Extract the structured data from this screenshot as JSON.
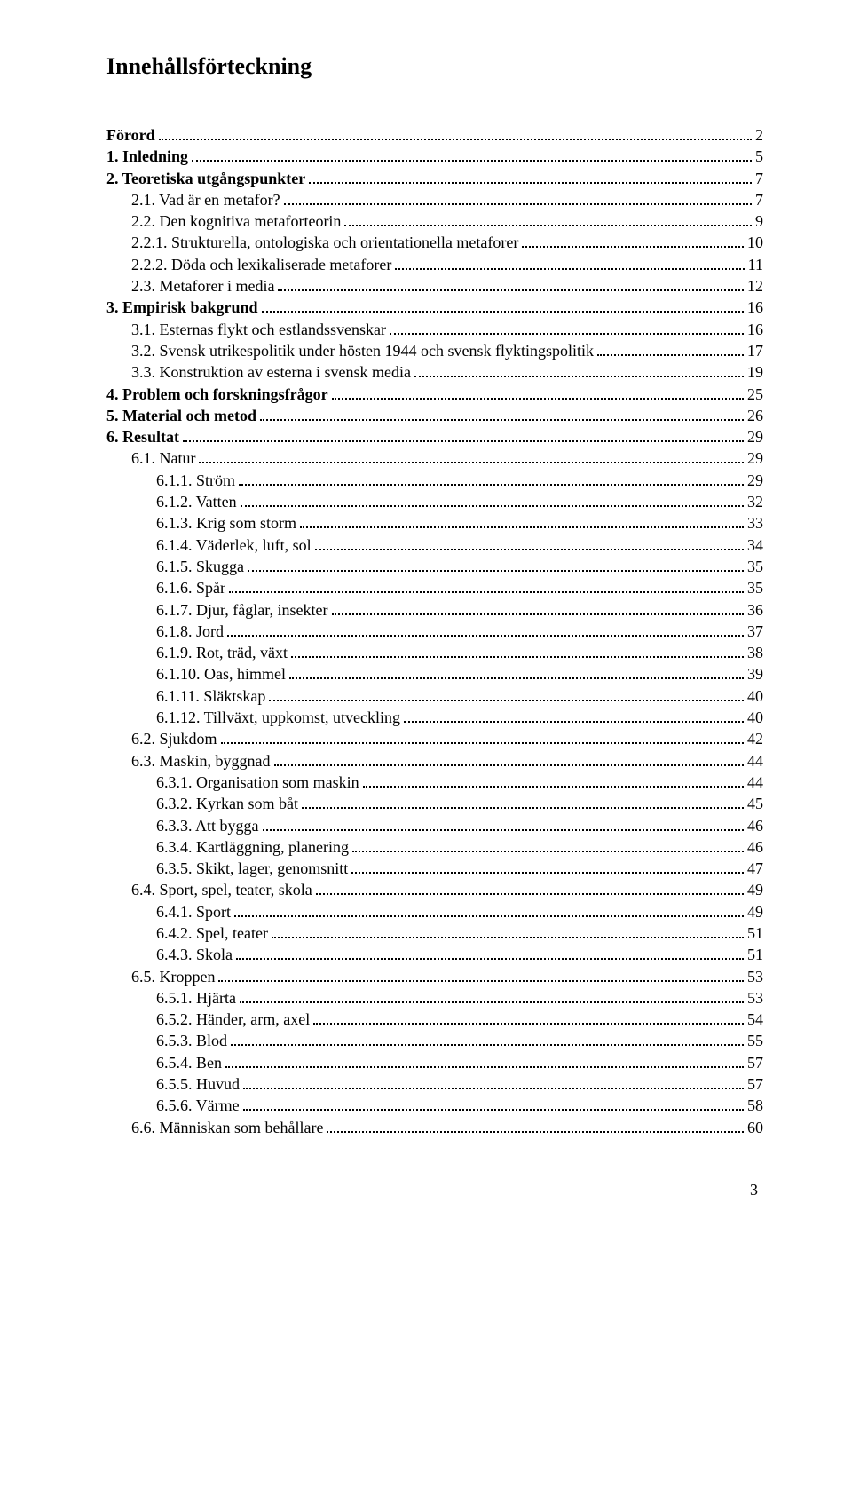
{
  "title": "Innehållsförteckning",
  "page_number": "3",
  "colors": {
    "text": "#000000",
    "background": "#ffffff",
    "dots": "#000000"
  },
  "typography": {
    "font_family": "Times New Roman",
    "title_fontsize_pt": 20,
    "body_fontsize_pt": 13
  },
  "toc": [
    {
      "label": "Förord",
      "page": "2",
      "bold": true,
      "indent": 0
    },
    {
      "label": "1. Inledning",
      "page": "5",
      "bold": true,
      "indent": 0
    },
    {
      "label": "2. Teoretiska utgångspunkter",
      "page": "7",
      "bold": true,
      "indent": 0
    },
    {
      "label": "2.1. Vad är en metafor?",
      "page": "7",
      "bold": false,
      "indent": 1
    },
    {
      "label": "2.2. Den kognitiva metaforteorin",
      "page": "9",
      "bold": false,
      "indent": 1
    },
    {
      "label": "2.2.1. Strukturella, ontologiska och orientationella metaforer",
      "page": "10",
      "bold": false,
      "indent": 1
    },
    {
      "label": "2.2.2. Döda och lexikaliserade metaforer",
      "page": "11",
      "bold": false,
      "indent": 1
    },
    {
      "label": "2.3. Metaforer i media",
      "page": "12",
      "bold": false,
      "indent": 1
    },
    {
      "label": "3. Empirisk bakgrund",
      "page": "16",
      "bold": true,
      "indent": 0
    },
    {
      "label": "3.1. Esternas flykt och estlandssvenskar",
      "page": "16",
      "bold": false,
      "indent": 1
    },
    {
      "label": "3.2. Svensk utrikespolitik under hösten 1944 och svensk flyktingspolitik",
      "page": "17",
      "bold": false,
      "indent": 1
    },
    {
      "label": "3.3. Konstruktion av esterna i svensk media",
      "page": "19",
      "bold": false,
      "indent": 1
    },
    {
      "label": "4. Problem och forskningsfrågor",
      "page": "25",
      "bold": true,
      "indent": 0
    },
    {
      "label": "5. Material och metod",
      "page": "26",
      "bold": true,
      "indent": 0
    },
    {
      "label": "6. Resultat",
      "page": "29",
      "bold": true,
      "indent": 0
    },
    {
      "label": "6.1. Natur",
      "page": "29",
      "bold": false,
      "indent": 1
    },
    {
      "label": "6.1.1. Ström",
      "page": "29",
      "bold": false,
      "indent": 2
    },
    {
      "label": "6.1.2. Vatten",
      "page": "32",
      "bold": false,
      "indent": 2
    },
    {
      "label": "6.1.3. Krig som storm",
      "page": "33",
      "bold": false,
      "indent": 2
    },
    {
      "label": "6.1.4. Väderlek, luft, sol",
      "page": "34",
      "bold": false,
      "indent": 2
    },
    {
      "label": "6.1.5. Skugga",
      "page": "35",
      "bold": false,
      "indent": 2
    },
    {
      "label": "6.1.6. Spår",
      "page": "35",
      "bold": false,
      "indent": 2
    },
    {
      "label": "6.1.7. Djur, fåglar, insekter",
      "page": "36",
      "bold": false,
      "indent": 2
    },
    {
      "label": "6.1.8. Jord",
      "page": "37",
      "bold": false,
      "indent": 2
    },
    {
      "label": "6.1.9. Rot, träd, växt",
      "page": "38",
      "bold": false,
      "indent": 2
    },
    {
      "label": "6.1.10. Oas, himmel",
      "page": "39",
      "bold": false,
      "indent": 2
    },
    {
      "label": "6.1.11. Släktskap",
      "page": "40",
      "bold": false,
      "indent": 2
    },
    {
      "label": "6.1.12. Tillväxt, uppkomst, utveckling",
      "page": "40",
      "bold": false,
      "indent": 2
    },
    {
      "label": "6.2. Sjukdom",
      "page": "42",
      "bold": false,
      "indent": 1
    },
    {
      "label": "6.3. Maskin, byggnad",
      "page": "44",
      "bold": false,
      "indent": 1
    },
    {
      "label": "6.3.1. Organisation som maskin",
      "page": "44",
      "bold": false,
      "indent": 2
    },
    {
      "label": "6.3.2. Kyrkan som båt",
      "page": "45",
      "bold": false,
      "indent": 2
    },
    {
      "label": "6.3.3. Att bygga",
      "page": "46",
      "bold": false,
      "indent": 2
    },
    {
      "label": "6.3.4. Kartläggning, planering",
      "page": "46",
      "bold": false,
      "indent": 2
    },
    {
      "label": "6.3.5. Skikt, lager, genomsnitt",
      "page": "47",
      "bold": false,
      "indent": 2
    },
    {
      "label": "6.4. Sport, spel, teater, skola",
      "page": "49",
      "bold": false,
      "indent": 1
    },
    {
      "label": "6.4.1. Sport",
      "page": "49",
      "bold": false,
      "indent": 2
    },
    {
      "label": "6.4.2. Spel, teater",
      "page": "51",
      "bold": false,
      "indent": 2
    },
    {
      "label": "6.4.3. Skola",
      "page": "51",
      "bold": false,
      "indent": 2
    },
    {
      "label": "6.5. Kroppen",
      "page": "53",
      "bold": false,
      "indent": 1
    },
    {
      "label": "6.5.1. Hjärta",
      "page": "53",
      "bold": false,
      "indent": 2
    },
    {
      "label": "6.5.2. Händer, arm, axel",
      "page": "54",
      "bold": false,
      "indent": 2
    },
    {
      "label": "6.5.3. Blod",
      "page": "55",
      "bold": false,
      "indent": 2
    },
    {
      "label": "6.5.4. Ben",
      "page": "57",
      "bold": false,
      "indent": 2
    },
    {
      "label": "6.5.5. Huvud",
      "page": "57",
      "bold": false,
      "indent": 2
    },
    {
      "label": "6.5.6. Värme",
      "page": "58",
      "bold": false,
      "indent": 2
    },
    {
      "label": "6.6. Människan som behållare",
      "page": "60",
      "bold": false,
      "indent": 1
    }
  ]
}
